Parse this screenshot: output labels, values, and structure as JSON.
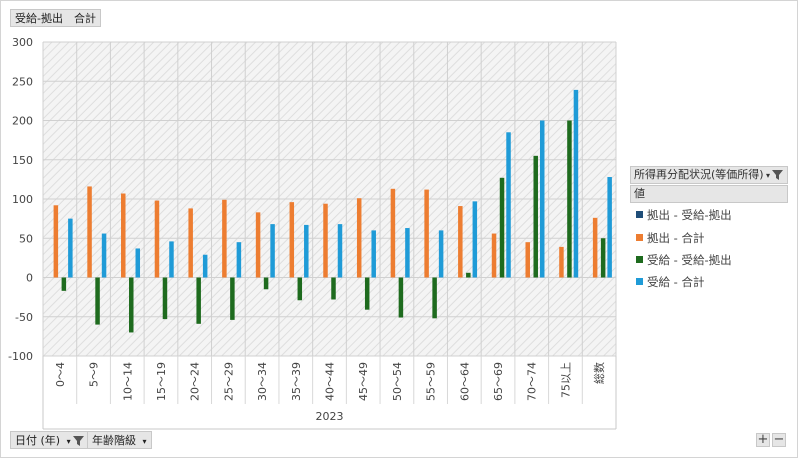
{
  "header": {
    "title": "受給-拠出　合計"
  },
  "filters": {
    "date_label": "日付 (年)",
    "age_label": "年齢階級",
    "zoom_in": "+",
    "zoom_out": "−"
  },
  "legend": {
    "header": "所得再分配状況(等価所得)",
    "value_label": "値",
    "items": [
      {
        "label": "拠出 - 受給-拠出",
        "color": "#1f4e79"
      },
      {
        "label": "拠出 - 合計",
        "color": "#ed7d31"
      },
      {
        "label": "受給 - 受給-拠出",
        "color": "#1e6b1e"
      },
      {
        "label": "受給 - 合計",
        "color": "#1f9bd7"
      }
    ]
  },
  "chart_data": {
    "type": "bar",
    "year_label": "2023",
    "categories": [
      "0～4",
      "5～9",
      "10～14",
      "15～19",
      "20～24",
      "25～29",
      "30～34",
      "35～39",
      "40～44",
      "45～49",
      "50～54",
      "55～59",
      "60～64",
      "65～69",
      "70～74",
      "75以上",
      "総数"
    ],
    "ylim": [
      -100,
      300
    ],
    "yticks": [
      -100,
      -50,
      0,
      50,
      100,
      150,
      200,
      250,
      300
    ],
    "series": [
      {
        "name": "拠出 - 受給-拠出",
        "color": "#1f4e79",
        "values": [
          null,
          null,
          null,
          null,
          null,
          null,
          null,
          null,
          null,
          null,
          null,
          null,
          null,
          null,
          null,
          null,
          null
        ]
      },
      {
        "name": "拠出 - 合計",
        "color": "#ed7d31",
        "values": [
          92,
          116,
          107,
          98,
          88,
          99,
          83,
          96,
          94,
          101,
          113,
          112,
          91,
          56,
          45,
          39,
          76
        ]
      },
      {
        "name": "受給 - 受給-拠出",
        "color": "#1e6b1e",
        "values": [
          -17,
          -60,
          -70,
          -53,
          -59,
          -54,
          -15,
          -29,
          -28,
          -41,
          -51,
          -52,
          6,
          127,
          155,
          200,
          50
        ]
      },
      {
        "name": "受給 - 合計",
        "color": "#1f9bd7",
        "values": [
          75,
          56,
          37,
          46,
          29,
          45,
          68,
          67,
          68,
          60,
          63,
          60,
          97,
          185,
          200,
          239,
          128
        ]
      }
    ]
  }
}
